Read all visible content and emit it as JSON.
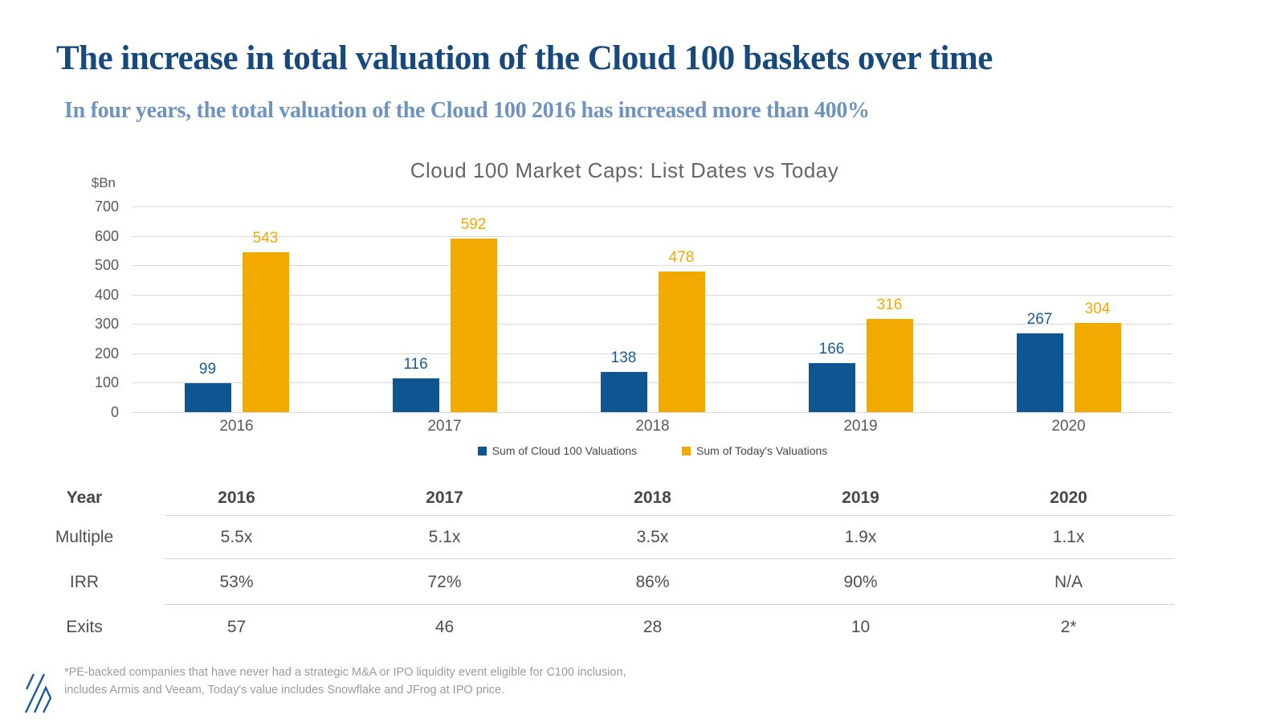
{
  "header": {
    "title": "The increase in total valuation of the Cloud 100 baskets over time",
    "subtitle": "In four years, the total valuation of the Cloud 100 2016 has increased more than 400%"
  },
  "chart_data": {
    "type": "bar",
    "title": "Cloud 100 Market Caps: List Dates vs Today",
    "ylabel": "$Bn",
    "xlabel": "",
    "categories": [
      "2016",
      "2017",
      "2018",
      "2019",
      "2020"
    ],
    "series": [
      {
        "name": "Sum of Cloud 100 Valuations",
        "color": "#0E5692",
        "label_color": "#1A5C99",
        "values": [
          99,
          116,
          138,
          166,
          267
        ]
      },
      {
        "name": "Sum of Today's Valuations",
        "color": "#F2A900",
        "label_color": "#F2A900",
        "values": [
          543,
          592,
          478,
          316,
          304
        ]
      }
    ],
    "ylim": [
      0,
      700
    ],
    "ytick_step": 100,
    "yticks": [
      700,
      600,
      500,
      400,
      300,
      200,
      100,
      0
    ],
    "grid": true,
    "legend_position": "bottom"
  },
  "table": {
    "header": {
      "label": "Year",
      "values": [
        "2016",
        "2017",
        "2018",
        "2019",
        "2020"
      ]
    },
    "rows": [
      {
        "label": "Multiple",
        "values": [
          "5.5x",
          "5.1x",
          "3.5x",
          "1.9x",
          "1.1x"
        ]
      },
      {
        "label": "IRR",
        "values": [
          "53%",
          "72%",
          "86%",
          "90%",
          "N/A"
        ]
      },
      {
        "label": "Exits",
        "values": [
          "57",
          "46",
          "28",
          "10",
          "2*"
        ]
      }
    ]
  },
  "footnote": {
    "line1": "*PE-backed companies that have never had a strategic M&A or IPO liquidity event eligible for C100 inclusion,",
    "line2": "includes Armis and Veeam,  Today's value includes Snowflake and JFrog at IPO price."
  },
  "branding": {
    "logo_icon": "diagonal-hatch-logo",
    "logo_color": "#1D5A96"
  },
  "colors": {
    "title_blue": "#17497D",
    "subtitle_blue": "#6E93BE",
    "bar_blue": "#0E5692",
    "bar_orange": "#F2A900",
    "axis_text": "#595959",
    "chart_title_text": "#666666",
    "table_text": "#4F4F4F",
    "footnote_text": "#9B9B9B",
    "gridline": "#D9D9D9"
  }
}
